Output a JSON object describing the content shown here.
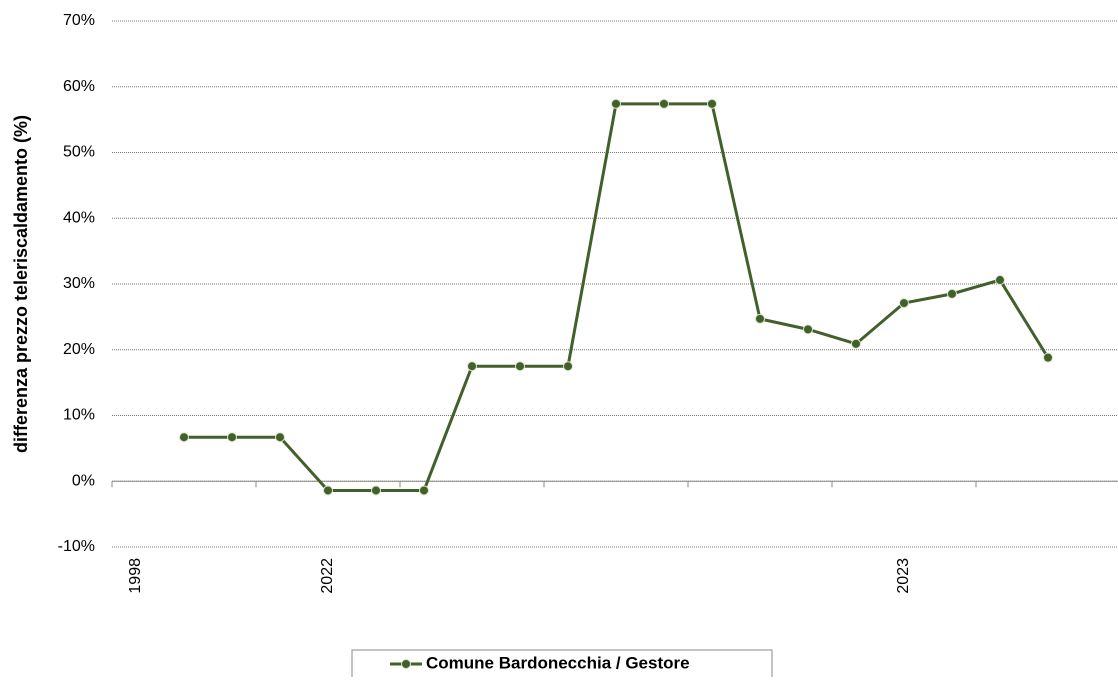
{
  "chart_data": {
    "type": "line",
    "y_label": "differenza prezzo teleriscaldamento (%)",
    "categories": [
      "1998",
      null,
      null,
      null,
      "2022",
      null,
      null,
      null,
      null,
      null,
      null,
      null,
      null,
      null,
      null,
      null,
      "2023",
      null,
      null,
      null,
      null
    ],
    "series": [
      {
        "name": "Comune Bardonecchia / Gestore",
        "color": "#41602b",
        "values": [
          null,
          6.7,
          6.7,
          6.7,
          -1.4,
          -1.4,
          -1.4,
          17.5,
          17.5,
          17.5,
          57.4,
          57.4,
          57.4,
          24.7,
          23.1,
          20.9,
          27.1,
          28.5,
          30.6,
          18.8,
          null
        ]
      }
    ],
    "ylim": [
      -10,
      70
    ],
    "yticks": [
      {
        "value": -10,
        "label": "-10%"
      },
      {
        "value": 0,
        "label": "0%"
      },
      {
        "value": 10,
        "label": "10%"
      },
      {
        "value": 20,
        "label": "20%"
      },
      {
        "value": 30,
        "label": "30%"
      },
      {
        "value": 40,
        "label": "40%"
      },
      {
        "value": 50,
        "label": "50%"
      },
      {
        "value": 60,
        "label": "60%"
      },
      {
        "value": 70,
        "label": "70%"
      }
    ],
    "grid": true
  }
}
